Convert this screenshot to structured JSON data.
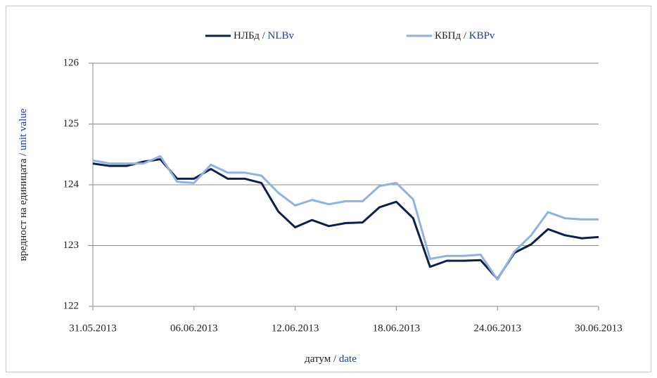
{
  "chart_data": {
    "type": "line",
    "xlabel": "датум / date",
    "ylabel": "вредност на единицата / unit value",
    "x": [
      "31.05.2013",
      "01.06.2013",
      "02.06.2013",
      "03.06.2013",
      "04.06.2013",
      "05.06.2013",
      "06.06.2013",
      "07.06.2013",
      "08.06.2013",
      "09.06.2013",
      "10.06.2013",
      "11.06.2013",
      "12.06.2013",
      "13.06.2013",
      "14.06.2013",
      "15.06.2013",
      "16.06.2013",
      "17.06.2013",
      "18.06.2013",
      "19.06.2013",
      "20.06.2013",
      "21.06.2013",
      "22.06.2013",
      "23.06.2013",
      "24.06.2013",
      "25.06.2013",
      "26.06.2013",
      "27.06.2013",
      "28.06.2013",
      "29.06.2013",
      "30.06.2013"
    ],
    "xticks": [
      "31.05.2013",
      "06.06.2013",
      "12.06.2013",
      "18.06.2013",
      "24.06.2013",
      "30.06.2013"
    ],
    "series": [
      {
        "name": "НЛБд / NLBv",
        "color": "#0d1f4d",
        "values": [
          124.35,
          124.31,
          124.31,
          124.38,
          124.42,
          124.1,
          124.1,
          124.26,
          124.1,
          124.1,
          124.03,
          123.56,
          123.3,
          123.42,
          123.32,
          123.37,
          123.38,
          123.63,
          123.72,
          123.45,
          122.65,
          122.75,
          122.75,
          122.76,
          122.45,
          122.88,
          123.02,
          123.27,
          123.17,
          123.12,
          123.14
        ]
      },
      {
        "name": "КБПд / KBPv",
        "color": "#8fb2de",
        "values": [
          124.4,
          124.35,
          124.35,
          124.35,
          124.47,
          124.05,
          124.03,
          124.33,
          124.2,
          124.2,
          124.15,
          123.87,
          123.66,
          123.75,
          123.68,
          123.73,
          123.73,
          123.98,
          124.03,
          123.76,
          122.78,
          122.83,
          122.83,
          122.85,
          122.44,
          122.9,
          123.17,
          123.55,
          123.45,
          123.43,
          123.43
        ]
      }
    ],
    "ylim": [
      122,
      126
    ],
    "yticks": [
      122,
      123,
      124,
      125,
      126
    ],
    "grid": true
  }
}
